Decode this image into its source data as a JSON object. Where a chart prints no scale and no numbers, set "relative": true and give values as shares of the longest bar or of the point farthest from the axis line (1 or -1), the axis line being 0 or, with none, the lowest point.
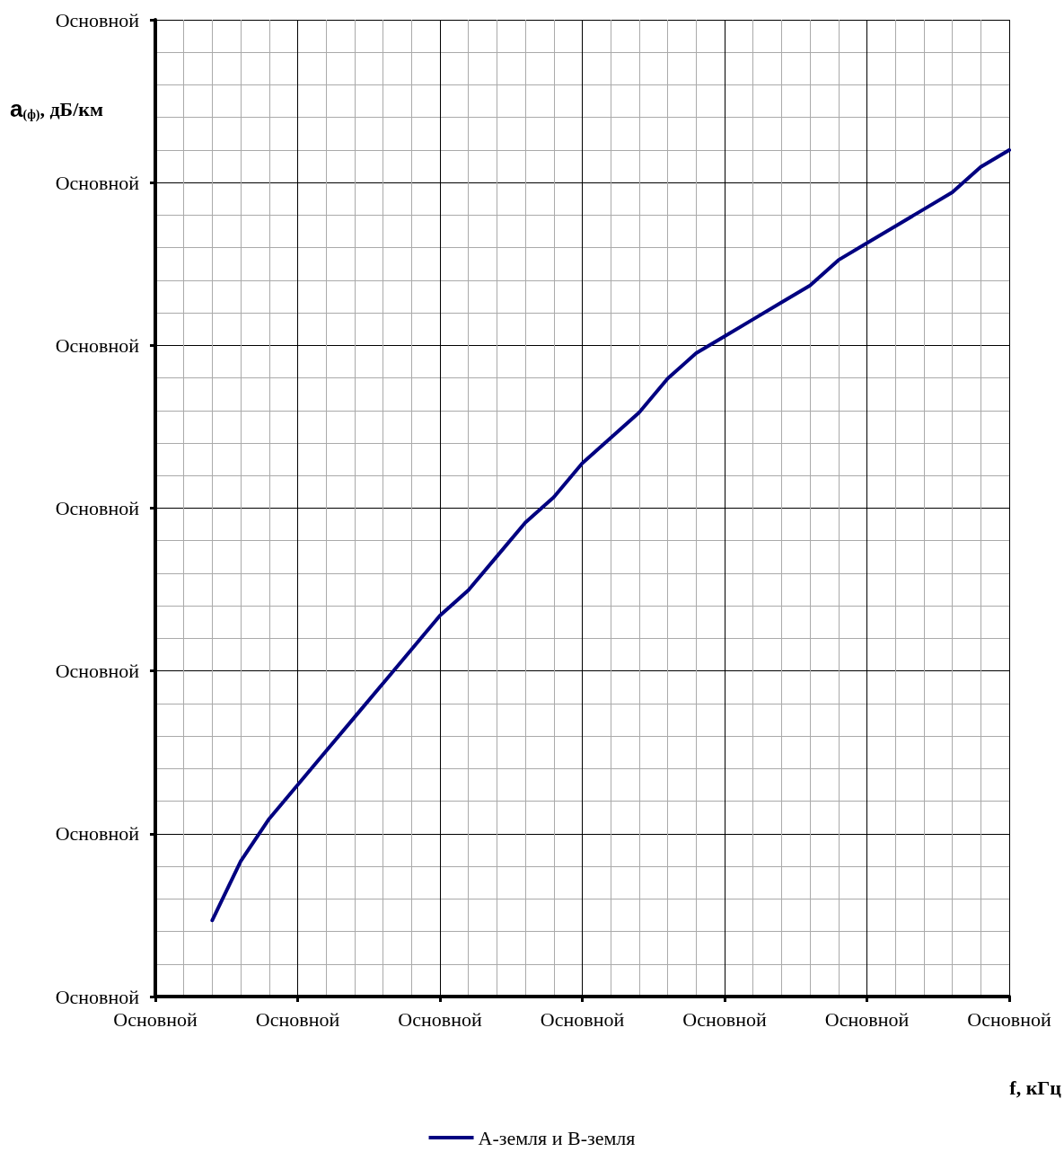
{
  "chart_data": {
    "type": "line",
    "xlabel": "f, кГц",
    "ylabel": "a$_{(ф)}$, дБ/км",
    "relative": true,
    "categories": [
      "Основной",
      null,
      null,
      null,
      null,
      "Основной",
      null,
      null,
      null,
      null,
      "Основной",
      null,
      null,
      null,
      null,
      "Основной",
      null,
      null,
      null,
      null,
      "Основной",
      null,
      null,
      null,
      null,
      "Основной",
      null,
      null,
      null,
      null,
      "Основной"
    ],
    "annotations": [
      "Основной",
      "Основной",
      "Основной",
      "Основной",
      "Основной",
      "Основной",
      "Основной"
    ],
    "grid": true,
    "legend": "bottom",
    "marker": "none",
    "line_style": "solid",
    "series": [
      {
        "name": "А-земля и В-земля",
        "color": "#000080",
        "values": [
          null,
          null,
          0.09,
          0.16,
          0.21,
          0.25,
          0.29,
          0.33,
          0.37,
          0.41,
          0.45,
          0.48,
          0.52,
          0.56,
          0.59,
          0.63,
          0.66,
          0.69,
          0.73,
          0.76,
          0.78,
          0.8,
          0.82,
          0.84,
          0.87,
          0.89,
          0.91,
          0.93,
          0.95,
          0.98,
          1.0
        ]
      }
    ]
  }
}
